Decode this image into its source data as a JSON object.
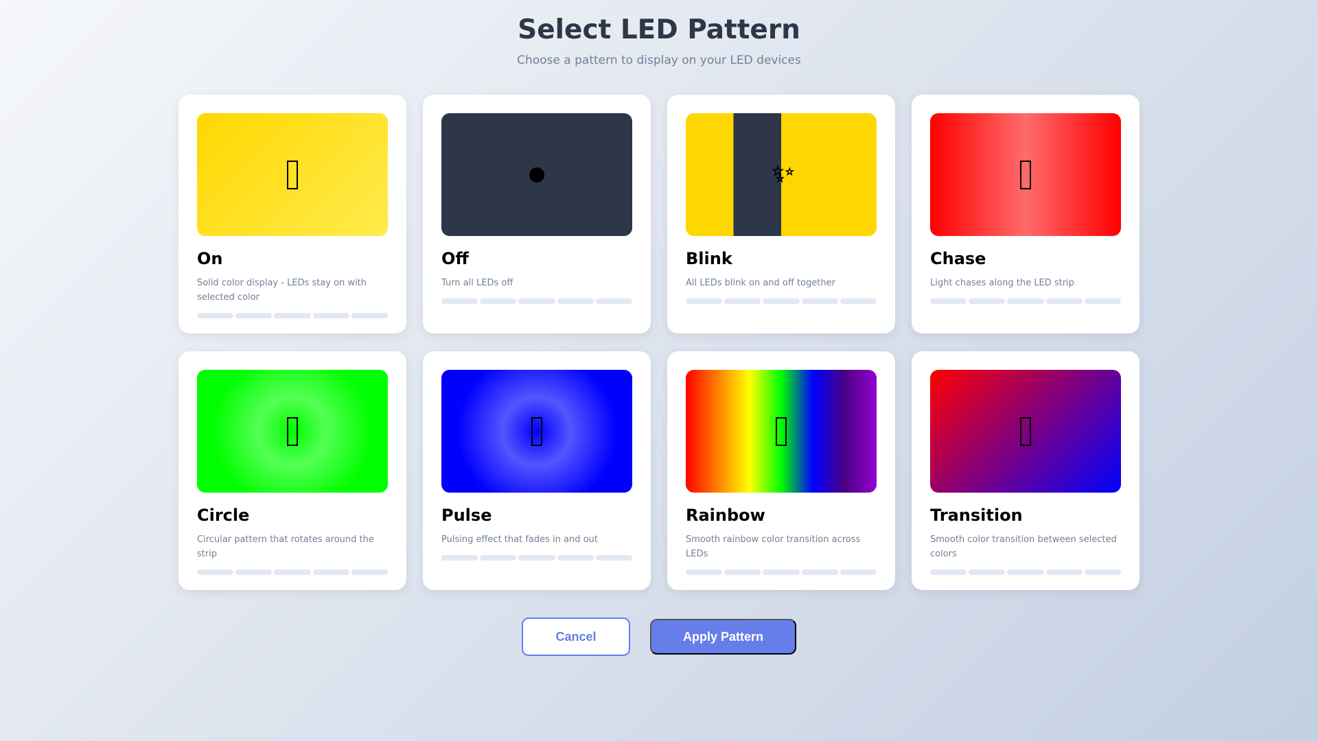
{
  "header": {
    "title": "Select LED Pattern",
    "subtitle": "Choose a pattern to display on your LED devices"
  },
  "patterns": [
    {
      "name": "On",
      "description": "Solid color display - LEDs stay on with selected color",
      "icon": "missing-glyph-icon",
      "preview": "linear-gradient(135deg,#ffd700,#ffeb4d)"
    },
    {
      "name": "Off",
      "description": "Turn all LEDs off",
      "icon": "black-circle-icon",
      "preview": "#2d3748"
    },
    {
      "name": "Blink",
      "description": "All LEDs blink on and off together",
      "icon": "sparkles-icon",
      "preview": "linear-gradient(90deg,#ffd700 0%,#ffd700 25%,#2d3748 25%,#2d3748 50%,#ffd700 50%,#ffd700 100%)"
    },
    {
      "name": "Chase",
      "description": "Light chases along the LED strip",
      "icon": "missing-glyph-icon",
      "preview": "linear-gradient(90deg,#ff0000,#ff6b6b 50%,#ff0000)"
    },
    {
      "name": "Circle",
      "description": "Circular pattern that rotates around the strip",
      "icon": "missing-glyph-icon",
      "preview": "radial-gradient(circle,#00ff00 0%,#55ff55 30%,#00ff00 70%)"
    },
    {
      "name": "Pulse",
      "description": "Pulsing effect that fades in and out",
      "icon": "missing-glyph-icon",
      "preview": "radial-gradient(circle,#0000ff 0%,#5555ff 30%,#0000ff 70%)"
    },
    {
      "name": "Rainbow",
      "description": "Smooth rainbow color transition across LEDs",
      "icon": "missing-glyph-icon",
      "preview": "linear-gradient(90deg,#ff0000,#ff7f00,#ffff00,#00ff00,#0000ff,#4b0082,#9400d3)"
    },
    {
      "name": "Transition",
      "description": "Smooth color transition between selected colors",
      "icon": "missing-glyph-icon",
      "preview": "linear-gradient(135deg,#ff0000,#0000ff)"
    }
  ],
  "actions": {
    "cancel": "Cancel",
    "apply": "Apply Pattern"
  },
  "colors": {
    "accent": "#667eea",
    "title": "#2d3748",
    "muted": "#718096"
  }
}
